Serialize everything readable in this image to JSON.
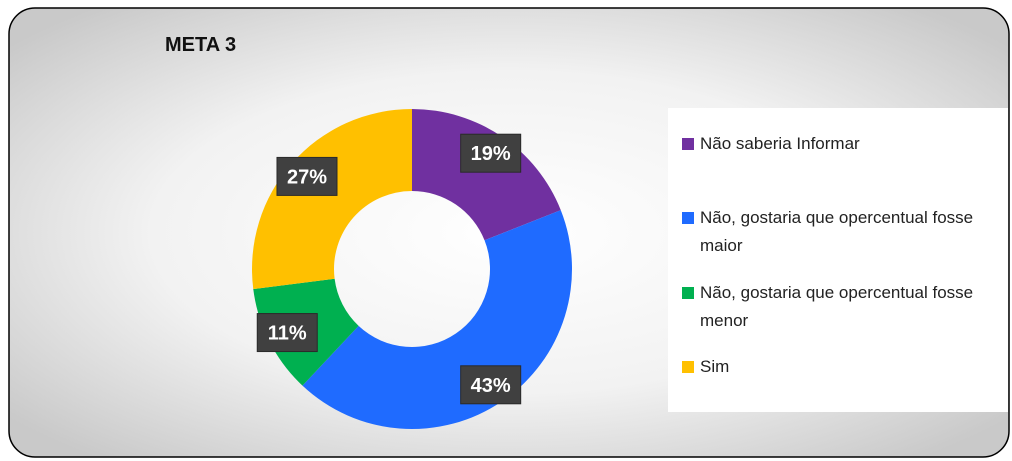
{
  "chart_data": {
    "type": "donut",
    "title": "META 3",
    "categories": [
      "Não saberia Informar",
      "Não, gostaria que opercentual fosse maior",
      "Não, gostaria que opercentual fosse menor",
      "Sim"
    ],
    "values": [
      19,
      43,
      11,
      27
    ],
    "value_labels": [
      "19%",
      "43%",
      "11%",
      "27%"
    ],
    "colors": [
      "#7030a0",
      "#1f6bff",
      "#00b050",
      "#ffc000"
    ],
    "legend": "right"
  }
}
